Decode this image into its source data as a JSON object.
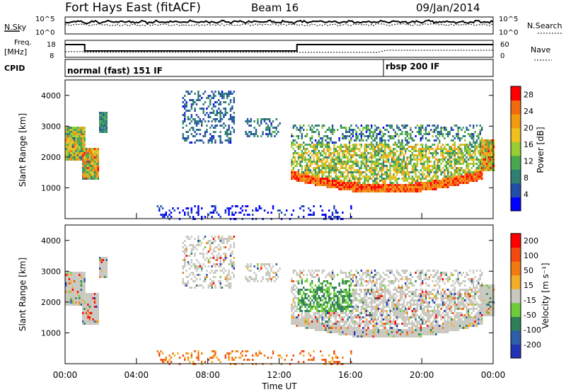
{
  "header": {
    "title": "Fort Hays East (fitACF)",
    "beam": "Beam 16",
    "date": "09/Jan/2014"
  },
  "noise_panel": {
    "left_label": "N.Sky",
    "right_label": "N.Search",
    "left_ticks": [
      "10^5",
      "10^0"
    ],
    "right_ticks": [
      "10^5",
      "10^0"
    ]
  },
  "freq_panel": {
    "left_label_1": "Freq.",
    "left_label_2": "[MHz]",
    "cpid_label": "CPID",
    "right_label": "Nave",
    "left_ticks": [
      "18",
      "8"
    ],
    "right_ticks": [
      "60",
      "0"
    ],
    "cpid_1": "normal (fast) 151 IF",
    "cpid_2": "rbsp 200 IF"
  },
  "colors": {
    "power_scale": [
      "#0000ff",
      "#234ea8",
      "#2f7f73",
      "#47a84f",
      "#9acc33",
      "#f0c020",
      "#f29a10",
      "#f26a10",
      "#ff0000"
    ],
    "velocity_scale": [
      "#2433b4",
      "#2d5ea8",
      "#2f7f58",
      "#6ecb3a",
      "#c8c8c0",
      "#f2ad2a",
      "#f27a10",
      "#f24a10",
      "#ff0000"
    ]
  },
  "chart_data": [
    {
      "type": "heatmap",
      "panel": "power",
      "ylabel": "Slant Range [km]",
      "yticks": [
        "1000",
        "2000",
        "3000",
        "4000"
      ],
      "ylim": [
        0,
        4500
      ],
      "xlim_hours": [
        0,
        24
      ],
      "color_label": "Power [dB]",
      "color_ticks": [
        "4",
        "8",
        "12",
        "16",
        "20",
        "24",
        "28"
      ],
      "color_range": [
        0,
        30
      ]
    },
    {
      "type": "heatmap",
      "panel": "velocity",
      "ylabel": "Slant Range [km]",
      "yticks": [
        "1000",
        "2000",
        "3000",
        "4000"
      ],
      "ylim": [
        0,
        4500
      ],
      "xlim_hours": [
        0,
        24
      ],
      "color_label": "Velocity [m s⁻¹]",
      "color_ticks": [
        "200",
        "100",
        "50",
        "15",
        "-15",
        "-50",
        "-100",
        "-200"
      ],
      "color_range": [
        -250,
        250
      ]
    }
  ],
  "xaxis": {
    "ticks": [
      "00:00",
      "04:00",
      "08:00",
      "12:00",
      "16:00",
      "20:00",
      "00:00"
    ],
    "label": "Time UT"
  }
}
